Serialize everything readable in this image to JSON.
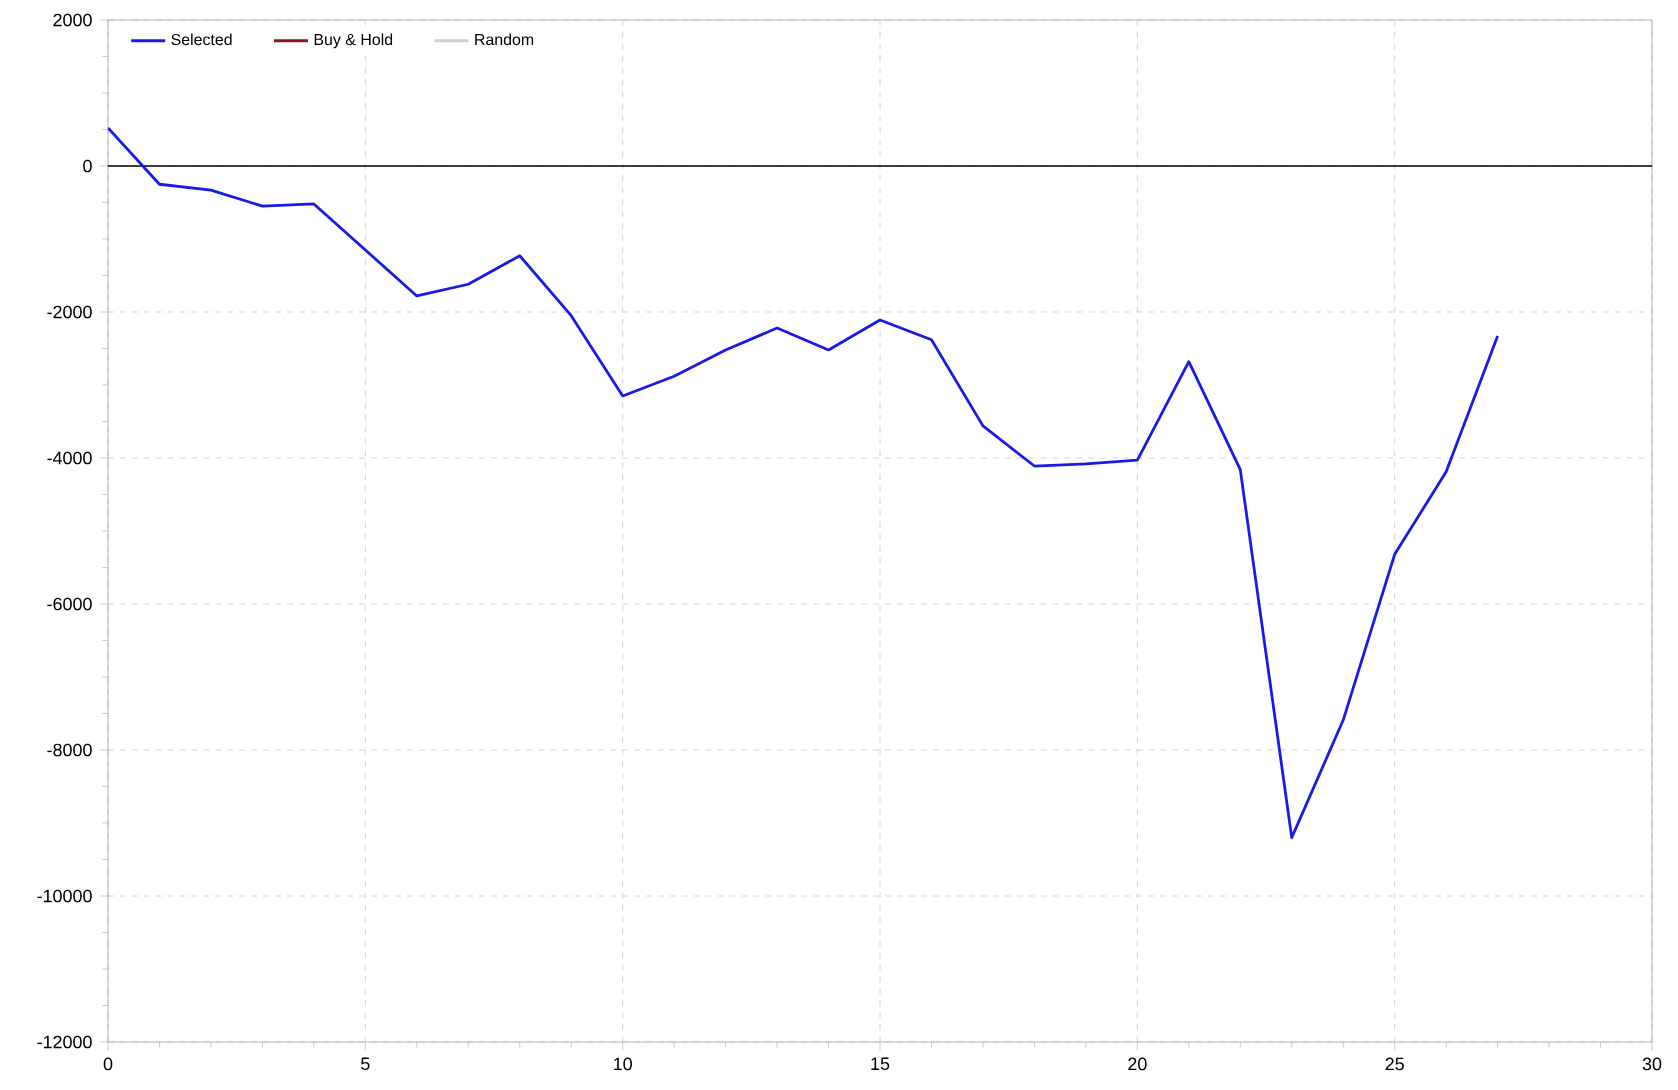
{
  "chart_data": {
    "type": "line",
    "x": [
      0,
      1,
      2,
      3,
      4,
      5,
      6,
      7,
      8,
      9,
      10,
      11,
      12,
      13,
      14,
      15,
      16,
      17,
      18,
      19,
      20,
      21,
      22,
      23,
      24,
      25,
      26,
      27
    ],
    "series": [
      {
        "name": "Selected",
        "color": "#1a1ae6",
        "values": [
          520,
          -250,
          -330,
          -550,
          -520,
          -1150,
          -1780,
          -1620,
          -1230,
          -2050,
          -3150,
          -2880,
          -2520,
          -2220,
          -2520,
          -2110,
          -2380,
          -3560,
          -4110,
          -4080,
          -4030,
          -2680,
          -4160,
          -9200,
          -7590,
          -5320,
          -4190,
          -2330
        ]
      },
      {
        "name": "Buy & Hold",
        "color": "#8b1a1a",
        "values": [
          null,
          null,
          null,
          null,
          null,
          null,
          null,
          null,
          null,
          null,
          null,
          null,
          null,
          null,
          null,
          null,
          null,
          null,
          null,
          null,
          null,
          null,
          null,
          null,
          null,
          null,
          null,
          null
        ]
      },
      {
        "name": "Random",
        "color": "#d0d0d0",
        "values": [
          null,
          null,
          null,
          null,
          null,
          null,
          null,
          null,
          null,
          null,
          null,
          null,
          null,
          null,
          null,
          null,
          null,
          null,
          null,
          null,
          null,
          null,
          null,
          null,
          null,
          null,
          null,
          null
        ]
      }
    ],
    "xlim": [
      0,
      30
    ],
    "xticks": [
      0,
      5,
      10,
      15,
      20,
      25,
      30
    ],
    "ylim": [
      -12000,
      2000
    ],
    "yticks": [
      -12000,
      -10000,
      -8000,
      -6000,
      -4000,
      -2000,
      0,
      2000
    ],
    "ref_lines": [
      {
        "axis": "y",
        "value": 0,
        "color": "#000000"
      }
    ],
    "grid": true,
    "legend": "top left",
    "marker": "none",
    "line_style": "solid"
  }
}
